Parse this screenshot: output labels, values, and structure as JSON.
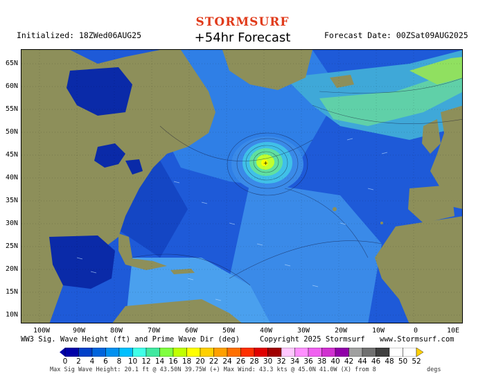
{
  "header": {
    "logo": "STORMSURF",
    "title": "+54hr Forecast",
    "initialized": "Initialized: 18ZWed06AUG25",
    "forecast_date": "Forecast Date: 00ZSat09AUG2025"
  },
  "axes": {
    "lat_labels": [
      "65N",
      "60N",
      "55N",
      "50N",
      "45N",
      "40N",
      "35N",
      "30N",
      "25N",
      "20N",
      "15N",
      "10N"
    ],
    "lon_labels": [
      "100W",
      "90W",
      "80W",
      "70W",
      "60W",
      "50W",
      "40W",
      "30W",
      "20W",
      "10W",
      "0",
      "10E"
    ]
  },
  "footer": {
    "caption": "WW3 Sig. Wave Height (ft) and Prime Wave Dir (deg)",
    "copyright": "Copyright 2025 Stormsurf",
    "website": "www.Stormsurf.com",
    "stats": "Max Sig Wave Height: 20.1 ft @ 43.50N 39.75W (+)  Max Wind: 43.3 kts @ 45.0N 41.0W (X) from 8",
    "units_suffix": "degs"
  },
  "legend": {
    "ticks": [
      "0",
      "2",
      "4",
      "6",
      "8",
      "10",
      "12",
      "14",
      "16",
      "18",
      "20",
      "22",
      "24",
      "26",
      "28",
      "30",
      "32",
      "34",
      "36",
      "38",
      "40",
      "42",
      "44",
      "46",
      "48",
      "50",
      "52"
    ],
    "colors": [
      "#0000a8",
      "#0040c8",
      "#0064dc",
      "#0090f0",
      "#00c0ff",
      "#40ffe8",
      "#40e8a0",
      "#80ff40",
      "#c0ff00",
      "#ffff00",
      "#ffd000",
      "#ffa000",
      "#ff7000",
      "#ff3000",
      "#e00000",
      "#a00000",
      "#ffc8ff",
      "#ff90ff",
      "#f060f0",
      "#d030d0",
      "#9000a8",
      "#a0a0a0",
      "#707070",
      "#404040",
      "#ffffff",
      "#ffffff",
      "#ffd000"
    ]
  },
  "colors": {
    "land": "#8d8f5a",
    "ocean_base": "#1e5ad8",
    "deep_ocean": "#0a2aa8",
    "lake": "#0a2aa8"
  }
}
